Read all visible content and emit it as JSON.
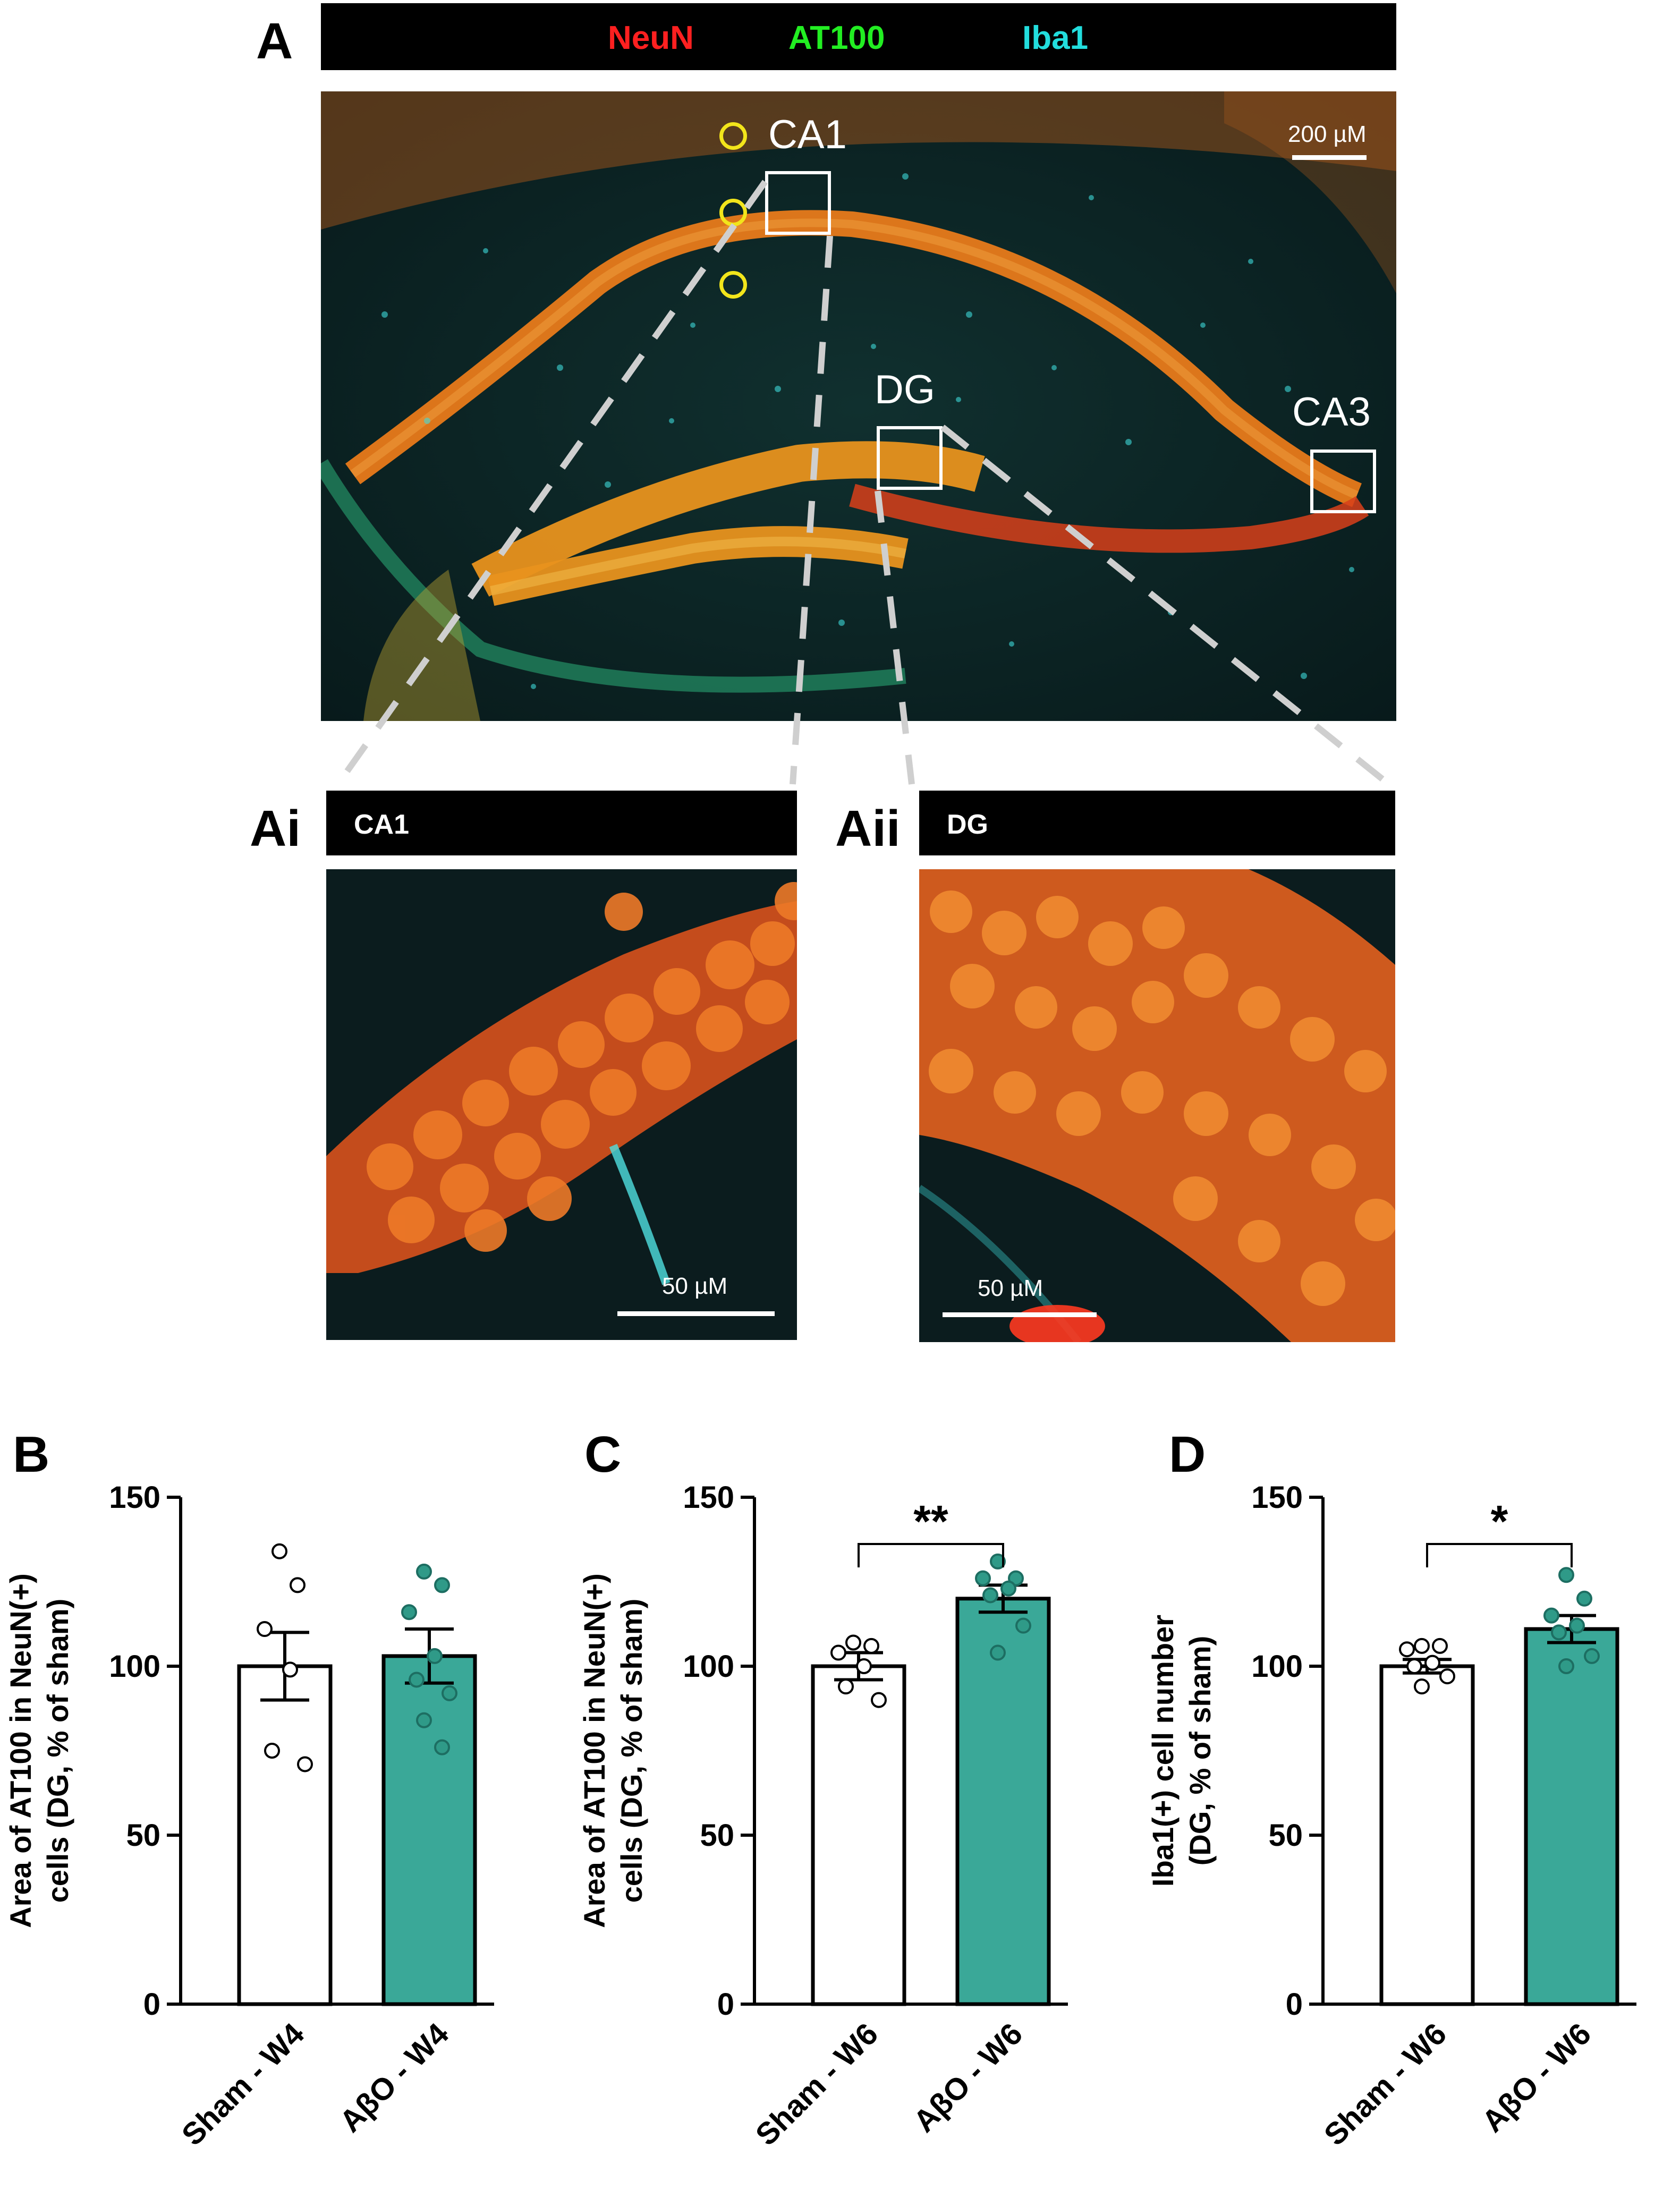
{
  "panel_a": {
    "letter": "A",
    "channels": [
      {
        "name": "NeuN",
        "color": "#ff2020"
      },
      {
        "name": "AT100",
        "color": "#22ee22"
      },
      {
        "name": "Iba1",
        "color": "#22dddd"
      }
    ],
    "scale_label": "200 µM",
    "regions": [
      "CA1",
      "DG",
      "CA3"
    ]
  },
  "panel_ai": {
    "letter": "Ai",
    "title": "CA1",
    "scale_label": "50 µM"
  },
  "panel_aii": {
    "letter": "Aii",
    "title": "DG",
    "scale_label": "50 µM"
  },
  "colors": {
    "sham": "#ffffff",
    "abo": "#3aa898",
    "teal_dot": "#2f9a88"
  },
  "chart_data": [
    {
      "panel": "B",
      "type": "bar",
      "ylabel": [
        "Area of AT100 in NeuN(+)",
        "cells (DG, % of sham)"
      ],
      "ylim": [
        0,
        150
      ],
      "yticks": [
        0,
        50,
        100,
        150
      ],
      "categories": [
        "Sham - W4",
        "AβO - W4"
      ],
      "means": [
        100,
        103
      ],
      "sem": [
        10,
        8
      ],
      "points": [
        [
          134,
          124,
          111,
          99,
          75,
          71
        ],
        [
          128,
          124,
          116,
          103,
          96,
          92,
          84,
          76
        ]
      ],
      "significance": ""
    },
    {
      "panel": "C",
      "type": "bar",
      "ylabel": [
        "Area of AT100 in NeuN(+)",
        "cells (DG, % of sham)"
      ],
      "ylim": [
        0,
        150
      ],
      "yticks": [
        0,
        50,
        100,
        150
      ],
      "categories": [
        "Sham - W6",
        "AβO - W6"
      ],
      "means": [
        100,
        120
      ],
      "sem": [
        4,
        4
      ],
      "points": [
        [
          107,
          106,
          104,
          100,
          94,
          90
        ],
        [
          131,
          126,
          126,
          123,
          121,
          112,
          104
        ]
      ],
      "significance": "**"
    },
    {
      "panel": "D",
      "type": "bar",
      "ylabel": [
        "Iba1(+) cell number",
        "(DG, % of sham)"
      ],
      "ylim": [
        0,
        150
      ],
      "yticks": [
        0,
        50,
        100,
        150
      ],
      "categories": [
        "Sham - W6",
        "AβO - W6"
      ],
      "means": [
        100,
        111
      ],
      "sem": [
        2,
        4
      ],
      "points": [
        [
          106,
          106,
          105,
          101,
          100,
          97,
          94
        ],
        [
          127,
          120,
          115,
          112,
          110,
          103,
          100
        ]
      ],
      "significance": "*"
    }
  ]
}
